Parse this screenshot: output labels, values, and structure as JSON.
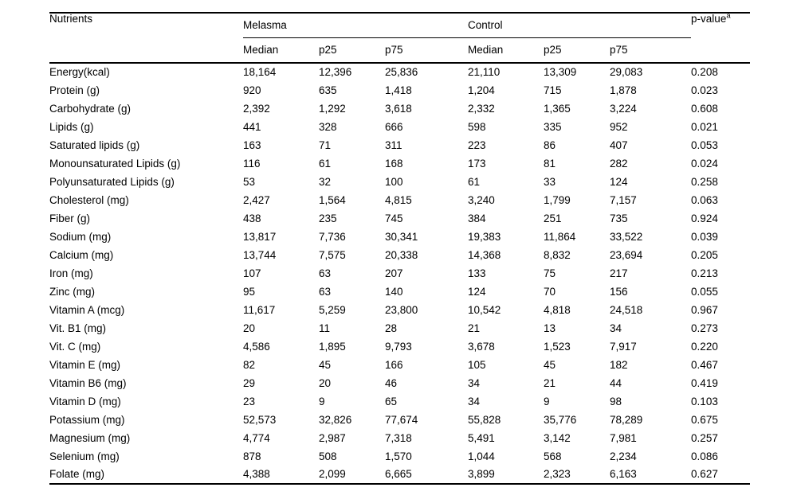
{
  "table": {
    "header": {
      "nutrients": "Nutrients",
      "group1": "Melasma",
      "group2": "Control",
      "pvalue": "p-value",
      "pvalue_sup": "a",
      "subheaders": [
        "Median",
        "p25",
        "p75",
        "Median",
        "p25",
        "p75"
      ]
    },
    "rows": [
      {
        "label": "Energy(kcal)",
        "values": [
          "18,164",
          "12,396",
          "25,836",
          "21,110",
          "13,309",
          "29,083",
          "0.208"
        ]
      },
      {
        "label": "Protein (g)",
        "values": [
          "920",
          "635",
          "1,418",
          "1,204",
          "715",
          "1,878",
          "0.023"
        ]
      },
      {
        "label": "Carbohydrate (g)",
        "values": [
          "2,392",
          "1,292",
          "3,618",
          "2,332",
          "1,365",
          "3,224",
          "0.608"
        ]
      },
      {
        "label": "Lipids (g)",
        "values": [
          "441",
          "328",
          "666",
          "598",
          "335",
          "952",
          "0.021"
        ]
      },
      {
        "label": "Saturated lipids (g)",
        "values": [
          "163",
          "71",
          "311",
          "223",
          "86",
          "407",
          "0.053"
        ]
      },
      {
        "label": "Monounsaturated Lipids (g)",
        "values": [
          "116",
          "61",
          "168",
          "173",
          "81",
          "282",
          "0.024"
        ]
      },
      {
        "label": "Polyunsaturated Lipids (g)",
        "values": [
          "53",
          "32",
          "100",
          "61",
          "33",
          "124",
          "0.258"
        ]
      },
      {
        "label": "Cholesterol (mg)",
        "values": [
          "2,427",
          "1,564",
          "4,815",
          "3,240",
          "1,799",
          "7,157",
          "0.063"
        ]
      },
      {
        "label": "Fiber (g)",
        "values": [
          "438",
          "235",
          "745",
          "384",
          "251",
          "735",
          "0.924"
        ]
      },
      {
        "label": "Sodium (mg)",
        "values": [
          "13,817",
          "7,736",
          "30,341",
          "19,383",
          "11,864",
          "33,522",
          "0.039"
        ]
      },
      {
        "label": "Calcium (mg)",
        "values": [
          "13,744",
          "7,575",
          "20,338",
          "14,368",
          "8,832",
          "23,694",
          "0.205"
        ]
      },
      {
        "label": "Iron (mg)",
        "values": [
          "107",
          "63",
          "207",
          "133",
          "75",
          "217",
          "0.213"
        ]
      },
      {
        "label": "Zinc (mg)",
        "values": [
          "95",
          "63",
          "140",
          "124",
          "70",
          "156",
          "0.055"
        ]
      },
      {
        "label": "Vitamin A (mcg)",
        "values": [
          "11,617",
          "5,259",
          "23,800",
          "10,542",
          "4,818",
          "24,518",
          "0.967"
        ]
      },
      {
        "label": "Vit. B1 (mg)",
        "values": [
          "20",
          "11",
          "28",
          "21",
          "13",
          "34",
          "0.273"
        ]
      },
      {
        "label": "Vit. C (mg)",
        "values": [
          "4,586",
          "1,895",
          "9,793",
          "3,678",
          "1,523",
          "7,917",
          "0.220"
        ]
      },
      {
        "label": "Vitamin E (mg)",
        "values": [
          "82",
          "45",
          "166",
          "105",
          "45",
          "182",
          "0.467"
        ]
      },
      {
        "label": "Vitamin B6 (mg)",
        "values": [
          "29",
          "20",
          "46",
          "34",
          "21",
          "44",
          "0.419"
        ]
      },
      {
        "label": "Vitamin D (mg)",
        "values": [
          "23",
          "9",
          "65",
          "34",
          "9",
          "98",
          "0.103"
        ]
      },
      {
        "label": "Potassium (mg)",
        "values": [
          "52,573",
          "32,826",
          "77,674",
          "55,828",
          "35,776",
          "78,289",
          "0.675"
        ]
      },
      {
        "label": "Magnesium (mg)",
        "values": [
          "4,774",
          "2,987",
          "7,318",
          "5,491",
          "3,142",
          "7,981",
          "0.257"
        ]
      },
      {
        "label": "Selenium (mg)",
        "values": [
          "878",
          "508",
          "1,570",
          "1,044",
          "568",
          "2,234",
          "0.086"
        ]
      },
      {
        "label": "Folate (mg)",
        "values": [
          "4,388",
          "2,099",
          "6,665",
          "3,899",
          "2,323",
          "6,163",
          "0.627"
        ]
      }
    ]
  }
}
